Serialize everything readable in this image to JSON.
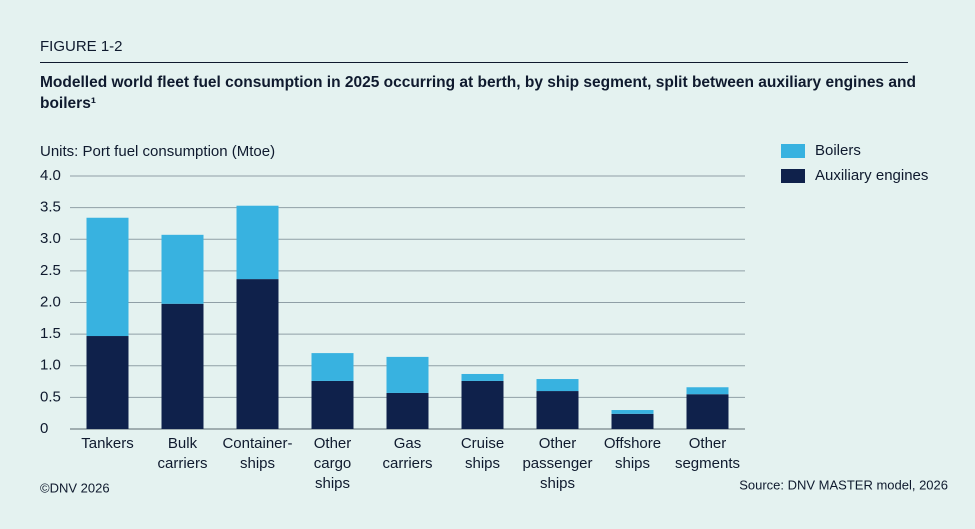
{
  "chart_data": {
    "type": "stacked_bar",
    "figure_label": "FIGURE 1-2",
    "title": "Modelled world fleet fuel consumption in 2025 occurring at berth, by ship segment, split between auxiliary engines and boilers¹",
    "y_label": "Units: Port fuel consumption (Mtoe)",
    "categories": [
      [
        "Tankers"
      ],
      [
        "Bulk",
        "carriers"
      ],
      [
        "Container-",
        "ships"
      ],
      [
        "Other",
        "cargo",
        "ships"
      ],
      [
        "Gas",
        "carriers"
      ],
      [
        "Cruise",
        "ships"
      ],
      [
        "Other",
        "passenger",
        "ships"
      ],
      [
        "Offshore",
        "ships"
      ],
      [
        "Other",
        "segments"
      ]
    ],
    "series": [
      {
        "name": "Auxiliary engines",
        "color": "#0f214b",
        "values": [
          1.47,
          1.98,
          2.37,
          0.76,
          0.57,
          0.76,
          0.6,
          0.24,
          0.55
        ]
      },
      {
        "name": "Boilers",
        "color": "#38b2e0",
        "values": [
          1.87,
          1.09,
          1.16,
          0.44,
          0.57,
          0.11,
          0.19,
          0.06,
          0.11
        ]
      }
    ],
    "ylim": [
      0,
      4
    ],
    "yticks": [
      0,
      0.5,
      {
        "value": 1,
        "label": "1.0"
      },
      1.5,
      {
        "value": 2,
        "label": "2.0"
      },
      2.5,
      {
        "value": 3,
        "label": "3.0"
      },
      3.5,
      {
        "value": 4,
        "label": "4.0"
      }
    ],
    "grid": true,
    "legend": "top-right",
    "copyright": "©DNV 2026",
    "source": "Source: DNV MASTER model, 2026"
  }
}
